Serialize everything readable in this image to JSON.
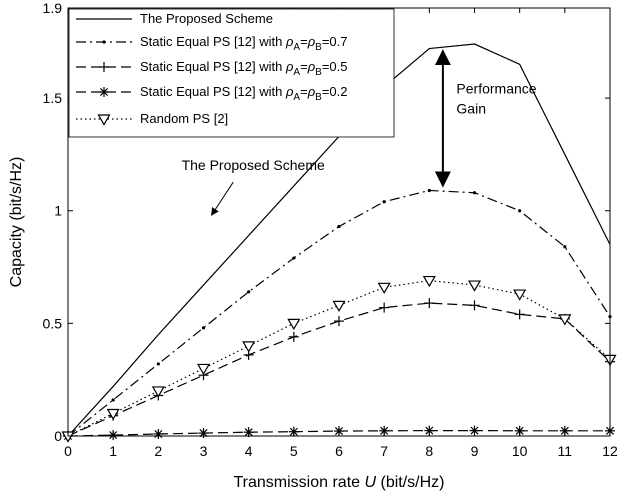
{
  "chart_data": {
    "type": "line",
    "title": "",
    "xlabel": "Transmission rate U (bit/s/Hz)",
    "xlabel_parts": [
      "Transmission rate ",
      "U",
      " (bit/s/Hz)"
    ],
    "ylabel": "Capacity (bit/s/Hz)",
    "xlim": [
      0,
      12
    ],
    "ylim": [
      0,
      1.9
    ],
    "x": [
      0,
      1,
      2,
      3,
      4,
      5,
      6,
      7,
      8,
      9,
      10,
      11,
      12
    ],
    "xticks": [
      "0",
      "1",
      "2",
      "3",
      "4",
      "5",
      "6",
      "7",
      "8",
      "9",
      "10",
      "11",
      "12"
    ],
    "yticks": [
      {
        "value": 0,
        "label": "0"
      },
      {
        "value": 0.5,
        "label": "0.5"
      },
      {
        "value": 1,
        "label": "1"
      },
      {
        "value": 1.5,
        "label": "1.5"
      },
      {
        "value": 1.9,
        "label": "1.9"
      }
    ],
    "grid": false,
    "legend_position": "top-left",
    "series": [
      {
        "name": "The Proposed Scheme",
        "legend_parts": [
          "The Proposed Scheme"
        ],
        "style": "solid",
        "marker": "none",
        "values": [
          0,
          0.22,
          0.45,
          0.67,
          0.89,
          1.11,
          1.33,
          1.55,
          1.72,
          1.74,
          1.65,
          1.25,
          0.85
        ]
      },
      {
        "name": "Static Equal PS [12] with ρA=ρB=0.7",
        "legend_parts": [
          "Static Equal PS [12] with ",
          "ρ",
          "A",
          "=",
          "ρ",
          "B",
          "=0.7"
        ],
        "style": "dashdot",
        "marker": "point",
        "values": [
          0,
          0.16,
          0.32,
          0.48,
          0.64,
          0.79,
          0.93,
          1.04,
          1.09,
          1.08,
          1.0,
          0.84,
          0.53
        ]
      },
      {
        "name": "Static Equal PS [12] with ρA=ρB=0.5",
        "legend_parts": [
          "Static Equal  PS [12] with ",
          "ρ",
          "A",
          "=",
          "ρ",
          "B",
          "=0.5"
        ],
        "style": "dashed",
        "marker": "plus",
        "values": [
          0,
          0.09,
          0.18,
          0.27,
          0.36,
          0.44,
          0.51,
          0.57,
          0.59,
          0.58,
          0.54,
          0.52,
          0.33
        ]
      },
      {
        "name": "Static Equal PS [12] with ρA=ρB=0.2",
        "legend_parts": [
          "Static Equal  PS [12] with ",
          "ρ",
          "A",
          "=",
          "ρ",
          "B",
          "=0.2"
        ],
        "style": "dashed",
        "marker": "asterisk",
        "values": [
          0,
          0.004,
          0.009,
          0.013,
          0.017,
          0.019,
          0.022,
          0.023,
          0.024,
          0.024,
          0.023,
          0.023,
          0.023
        ]
      },
      {
        "name": "Random PS [2]",
        "legend_parts": [
          "Random PS [2]"
        ],
        "style": "dotted",
        "marker": "triangle-down",
        "values": [
          0,
          0.1,
          0.2,
          0.3,
          0.4,
          0.5,
          0.58,
          0.66,
          0.69,
          0.67,
          0.63,
          0.52,
          0.34
        ]
      }
    ],
    "annotations": [
      {
        "kind": "arrow-label",
        "text": "The Proposed Scheme",
        "x": 4.1,
        "y": 1.18,
        "target_x": 3.0,
        "target_y": 0.98
      },
      {
        "kind": "double-arrow",
        "lines": [
          "Performance",
          "Gain"
        ],
        "x": 8.3,
        "y_top": 1.71,
        "y_bottom": 1.11,
        "text_x": 8.6,
        "text_y": 1.52
      }
    ]
  }
}
